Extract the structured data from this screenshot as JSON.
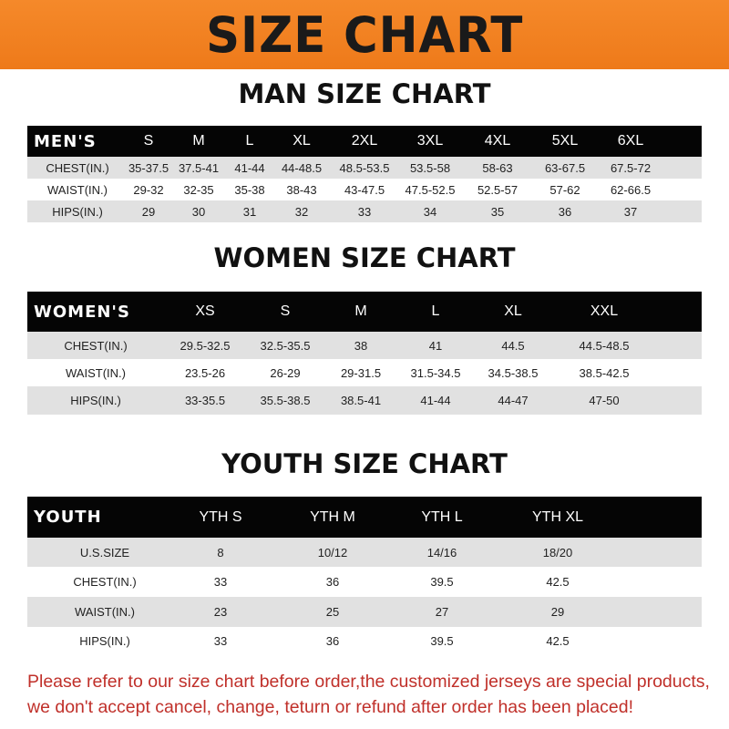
{
  "banner_title": "SIZE CHART",
  "men": {
    "title": "MAN SIZE CHART",
    "header": [
      "MEN'S",
      "S",
      "M",
      "L",
      "XL",
      "2XL",
      "3XL",
      "4XL",
      "5XL",
      "6XL"
    ],
    "rows": [
      [
        "CHEST(IN.)",
        "35-37.5",
        "37.5-41",
        "41-44",
        "44-48.5",
        "48.5-53.5",
        "53.5-58",
        "58-63",
        "63-67.5",
        "67.5-72"
      ],
      [
        "WAIST(IN.)",
        "29-32",
        "32-35",
        "35-38",
        "38-43",
        "43-47.5",
        "47.5-52.5",
        "52.5-57",
        "57-62",
        "62-66.5"
      ],
      [
        "HIPS(IN.)",
        "29",
        "30",
        "31",
        "32",
        "33",
        "34",
        "35",
        "36",
        "37"
      ]
    ]
  },
  "women": {
    "title": "WOMEN SIZE CHART",
    "header": [
      "WOMEN'S",
      "XS",
      "S",
      "M",
      "L",
      "XL",
      "XXL"
    ],
    "rows": [
      [
        "CHEST(IN.)",
        "29.5-32.5",
        "32.5-35.5",
        "38",
        "41",
        "44.5",
        "44.5-48.5"
      ],
      [
        "WAIST(IN.)",
        "23.5-26",
        "26-29",
        "29-31.5",
        "31.5-34.5",
        "34.5-38.5",
        "38.5-42.5"
      ],
      [
        "HIPS(IN.)",
        "33-35.5",
        "35.5-38.5",
        "38.5-41",
        "41-44",
        "44-47",
        "47-50"
      ]
    ]
  },
  "youth": {
    "title": "YOUTH SIZE CHART",
    "header": [
      "YOUTH",
      "YTH S",
      "YTH M",
      "YTH L",
      "YTH XL"
    ],
    "rows": [
      [
        "U.S.SIZE",
        "8",
        "10/12",
        "14/16",
        "18/20"
      ],
      [
        "CHEST(IN.)",
        "33",
        "36",
        "39.5",
        "42.5"
      ],
      [
        "WAIST(IN.)",
        "23",
        "25",
        "27",
        "29"
      ],
      [
        "HIPS(IN.)",
        "33",
        "36",
        "39.5",
        "42.5"
      ]
    ]
  },
  "notice": [
    "Please refer to our size chart before order,the customized jerseys are special products,",
    "we don't accept cancel, change, teturn or refund after order has been placed!"
  ],
  "colors": {
    "banner": "#f07f1e",
    "header_row": "#050505",
    "stripe": "#e1e1e1",
    "notice": "#c0302a"
  }
}
